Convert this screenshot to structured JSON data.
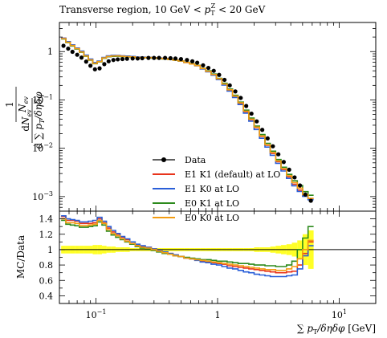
{
  "chart_data": {
    "type": "line",
    "title": "Transverse region, 10 GeV < p_T^Z < 20 GeV",
    "xlabel": "∑ p_T / δη δφ [GeV]",
    "ylabel": "1/N_ev dN_ev/d∑p_T/δηδφ",
    "ratio_ylabel": "MC/Data",
    "xscale": "log",
    "yscale": "log",
    "xlim": [
      0.05,
      20
    ],
    "ylim": [
      0.0005,
      4
    ],
    "ratio_ylim": [
      0.3,
      1.5
    ],
    "x_tick_labels": [
      {
        "v": 0.1,
        "base": "10",
        "exp": "−1"
      },
      {
        "v": 1,
        "base": "1",
        "exp": ""
      },
      {
        "v": 10,
        "base": "10",
        "exp": "1"
      }
    ],
    "y_tick_labels": [
      {
        "v": 1,
        "base": "1",
        "exp": ""
      },
      {
        "v": 0.1,
        "base": "10",
        "exp": "−1"
      },
      {
        "v": 0.01,
        "base": "10",
        "exp": "−2"
      },
      {
        "v": 0.001,
        "base": "10",
        "exp": "−3"
      }
    ],
    "ratio_tick_labels": [
      0.4,
      0.6,
      0.8,
      1,
      1.2,
      1.4
    ],
    "legend": [
      {
        "label": "Data",
        "color": "#000000",
        "kind": "points"
      },
      {
        "label": "E1 K1 (default) at LO",
        "color": "#e8341c",
        "kind": "line"
      },
      {
        "label": "E1 K0 at LO",
        "color": "#2a5fd8",
        "kind": "line"
      },
      {
        "label": "E0 K1 at LO",
        "color": "#2c8a1c",
        "kind": "line"
      },
      {
        "label": "E0 K0 at LO",
        "color": "#f39c12",
        "kind": "line"
      }
    ],
    "data": {
      "name": "Data",
      "color": "#000000",
      "x": [
        0.054,
        0.059,
        0.064,
        0.07,
        0.076,
        0.083,
        0.09,
        0.098,
        0.107,
        0.117,
        0.127,
        0.139,
        0.151,
        0.165,
        0.18,
        0.2,
        0.22,
        0.24,
        0.27,
        0.3,
        0.33,
        0.37,
        0.41,
        0.45,
        0.5,
        0.56,
        0.62,
        0.68,
        0.76,
        0.84,
        0.93,
        1.03,
        1.14,
        1.26,
        1.4,
        1.55,
        1.72,
        1.9,
        2.1,
        2.33,
        2.58,
        2.85,
        3.16,
        3.5,
        3.88,
        4.3,
        4.76,
        5.27,
        5.85
      ],
      "y": [
        1.32,
        1.15,
        0.99,
        0.86,
        0.75,
        0.62,
        0.51,
        0.43,
        0.45,
        0.55,
        0.63,
        0.67,
        0.69,
        0.7,
        0.71,
        0.72,
        0.72,
        0.73,
        0.74,
        0.74,
        0.74,
        0.74,
        0.73,
        0.72,
        0.7,
        0.67,
        0.63,
        0.59,
        0.52,
        0.46,
        0.4,
        0.33,
        0.26,
        0.2,
        0.15,
        0.11,
        0.075,
        0.052,
        0.036,
        0.024,
        0.016,
        0.011,
        0.0075,
        0.0052,
        0.0036,
        0.0025,
        0.0017,
        0.0011,
        0.00082
      ]
    },
    "series": [
      {
        "name": "E1 K1 (default) at LO",
        "color": "#e8341c",
        "ratio": [
          1.43,
          1.38,
          1.38,
          1.37,
          1.34,
          1.34,
          1.34,
          1.35,
          1.4,
          1.35,
          1.28,
          1.23,
          1.2,
          1.16,
          1.13,
          1.1,
          1.06,
          1.04,
          1.03,
          1.01,
          0.99,
          0.97,
          0.95,
          0.93,
          0.91,
          0.89,
          0.88,
          0.87,
          0.85,
          0.84,
          0.83,
          0.82,
          0.81,
          0.79,
          0.78,
          0.77,
          0.76,
          0.75,
          0.74,
          0.73,
          0.72,
          0.71,
          0.7,
          0.7,
          0.71,
          0.72,
          0.8,
          0.95,
          1.1
        ]
      },
      {
        "name": "E1 K0 at LO",
        "color": "#2a5fd8",
        "ratio": [
          1.44,
          1.4,
          1.39,
          1.38,
          1.36,
          1.36,
          1.37,
          1.38,
          1.42,
          1.37,
          1.3,
          1.25,
          1.21,
          1.17,
          1.14,
          1.1,
          1.07,
          1.05,
          1.03,
          1.01,
          0.99,
          0.97,
          0.95,
          0.93,
          0.91,
          0.89,
          0.88,
          0.86,
          0.84,
          0.83,
          0.81,
          0.8,
          0.78,
          0.76,
          0.75,
          0.73,
          0.71,
          0.7,
          0.68,
          0.67,
          0.66,
          0.65,
          0.65,
          0.65,
          0.66,
          0.67,
          0.75,
          0.92,
          1.05
        ]
      },
      {
        "name": "E0 K1 at LO",
        "color": "#2c8a1c",
        "ratio": [
          1.38,
          1.33,
          1.32,
          1.31,
          1.29,
          1.29,
          1.3,
          1.31,
          1.36,
          1.32,
          1.24,
          1.19,
          1.16,
          1.13,
          1.1,
          1.07,
          1.04,
          1.02,
          1.01,
          0.99,
          0.97,
          0.95,
          0.94,
          0.92,
          0.91,
          0.9,
          0.89,
          0.88,
          0.87,
          0.87,
          0.86,
          0.85,
          0.85,
          0.84,
          0.83,
          0.82,
          0.82,
          0.81,
          0.8,
          0.8,
          0.79,
          0.79,
          0.78,
          0.78,
          0.8,
          0.85,
          1.0,
          1.15,
          1.3
        ]
      },
      {
        "name": "E0 K0 at LO",
        "color": "#f39c12",
        "ratio": [
          1.4,
          1.35,
          1.35,
          1.34,
          1.31,
          1.31,
          1.32,
          1.33,
          1.38,
          1.34,
          1.26,
          1.21,
          1.18,
          1.14,
          1.11,
          1.08,
          1.05,
          1.03,
          1.02,
          1.0,
          0.98,
          0.96,
          0.94,
          0.92,
          0.91,
          0.89,
          0.88,
          0.87,
          0.86,
          0.85,
          0.84,
          0.83,
          0.82,
          0.81,
          0.8,
          0.79,
          0.78,
          0.77,
          0.76,
          0.75,
          0.74,
          0.74,
          0.73,
          0.73,
          0.75,
          0.78,
          0.88,
          1.0,
          1.12
        ]
      }
    ],
    "ratio_band": {
      "color": "#ffff00",
      "half_width": [
        0.05,
        0.05,
        0.05,
        0.05,
        0.05,
        0.05,
        0.05,
        0.06,
        0.06,
        0.05,
        0.04,
        0.04,
        0.03,
        0.03,
        0.03,
        0.02,
        0.02,
        0.02,
        0.02,
        0.02,
        0.02,
        0.02,
        0.02,
        0.02,
        0.02,
        0.02,
        0.02,
        0.02,
        0.02,
        0.02,
        0.02,
        0.02,
        0.02,
        0.02,
        0.02,
        0.02,
        0.02,
        0.02,
        0.03,
        0.03,
        0.03,
        0.04,
        0.05,
        0.06,
        0.07,
        0.09,
        0.12,
        0.2,
        0.25
      ]
    }
  }
}
